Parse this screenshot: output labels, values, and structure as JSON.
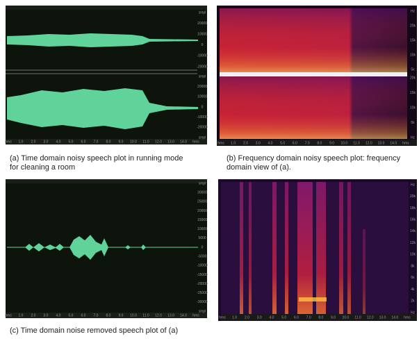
{
  "panels": [
    {
      "caption_lines": [
        "(a) Time domain noisy speech plot in running mode",
        "for cleaning a room"
      ],
      "x_ticks": [
        "hms",
        "1.0",
        "2.0",
        "3.0",
        "4.0",
        "5.0",
        "6.0",
        "7.0",
        "8.0",
        "9.0",
        "10.0",
        "11.0",
        "12.0",
        "13.0",
        "14.0",
        "hms"
      ],
      "y_ticks": [
        [
          "smpl",
          "20000",
          "10000",
          "0",
          "-10000",
          "-20000"
        ],
        [
          "smpl",
          "20000",
          "10000",
          "0",
          "-10000",
          "-20000",
          "smpl"
        ]
      ]
    },
    {
      "caption_lines": [
        "(b) Frequency domain noisy speech plot: frequency",
        "domain view of (a)."
      ],
      "x_ticks": [
        "hms",
        "1.0",
        "2.0",
        "3.0",
        "4.0",
        "5.0",
        "6.0",
        "7.0",
        "8.0",
        "9.0",
        "10.0",
        "11.0",
        "12.0",
        "13.0",
        "14.0",
        "hms"
      ],
      "y_ticks": [
        [
          "Hz",
          "20k",
          "15k",
          "10k",
          "5k"
        ],
        [
          "20k",
          "15k",
          "10k",
          "5k",
          "Hz"
        ]
      ]
    },
    {
      "caption_lines": [
        "(c) Time domain noise removed speech plot of (a)"
      ],
      "x_ticks": [
        "hms",
        "1.0",
        "2.0",
        "3.0",
        "4.0",
        "5.0",
        "6.0",
        "7.0",
        "8.0",
        "9.0",
        "10.0",
        "11.0",
        "12.0",
        "13.0",
        "14.0",
        "hms"
      ],
      "y_ticks": [
        [
          "smpl",
          "30000",
          "25000",
          "20000",
          "15000",
          "10000",
          "5000",
          "0",
          "-5000",
          "-10000",
          "-15000",
          "-20000",
          "-25000",
          "-30000",
          "smpl"
        ]
      ]
    },
    {
      "x_ticks": [
        "hms",
        "1.0",
        "2.0",
        "3.0",
        "4.0",
        "5.0",
        "6.0",
        "7.0",
        "8.0",
        "9.0",
        "10.0",
        "11.0",
        "12.0",
        "13.0",
        "14.0",
        "hms"
      ],
      "y_ticks": [
        [
          "Hz",
          "20k",
          "18k",
          "16k",
          "14k",
          "12k",
          "10k",
          "8k",
          "6k",
          "4k",
          "2k",
          "Hz"
        ]
      ]
    }
  ]
}
